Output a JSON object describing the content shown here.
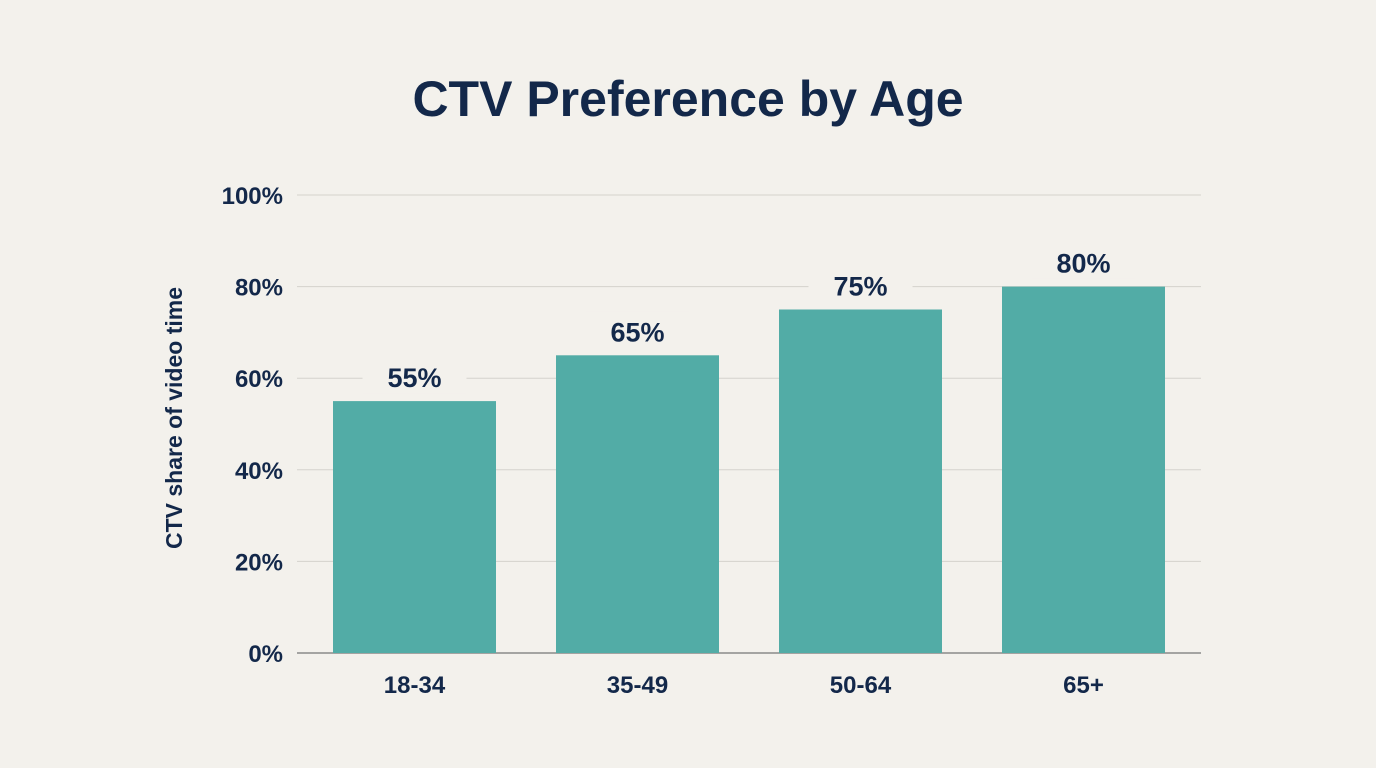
{
  "chart_data": {
    "type": "bar",
    "title": "CTV Preference by Age",
    "xlabel": "",
    "ylabel": "CTV share of video time",
    "categories": [
      "18-34",
      "35-49",
      "50-64",
      "65+"
    ],
    "values": [
      55,
      65,
      75,
      80
    ],
    "data_labels": [
      "55%",
      "65%",
      "75%",
      "80%"
    ],
    "ylim": [
      0,
      100
    ],
    "yticks": [
      0,
      20,
      40,
      60,
      80,
      100
    ],
    "ytick_labels": [
      "0%",
      "20%",
      "40%",
      "60%",
      "80%",
      "100%"
    ],
    "grid": true,
    "legend": "none",
    "colors": {
      "bar": "#52aca6",
      "text": "#13284a",
      "grid": "#d4d2cd",
      "background": "#f3f1ec"
    }
  }
}
